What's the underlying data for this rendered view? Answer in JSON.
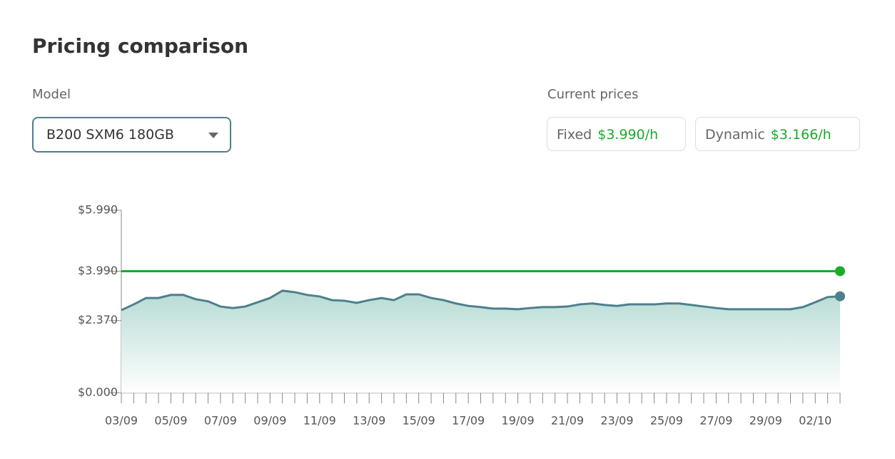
{
  "header": {
    "title": "Pricing comparison"
  },
  "model": {
    "label": "Model",
    "selected": "B200 SXM6 180GB"
  },
  "prices": {
    "label": "Current prices"
  },
  "chart_data": {
    "type": "line",
    "categories": [
      "03/09",
      null,
      null,
      null,
      "05/09",
      null,
      null,
      null,
      "07/09",
      null,
      null,
      null,
      "09/09",
      null,
      null,
      null,
      "11/09",
      null,
      null,
      null,
      "13/09",
      null,
      null,
      null,
      "15/09",
      null,
      null,
      null,
      "17/09",
      null,
      null,
      null,
      "19/09",
      null,
      null,
      null,
      "21/09",
      null,
      null,
      null,
      "23/09",
      null,
      null,
      null,
      "25/09",
      null,
      null,
      null,
      "27/09",
      null,
      null,
      null,
      "29/09",
      null,
      null,
      null,
      "02/10",
      null,
      null
    ],
    "series": [
      {
        "name": "Fixed",
        "current_label": "$3.990/h",
        "color": "#1aab2a",
        "values": [
          3.99,
          3.99,
          3.99,
          3.99,
          3.99,
          3.99,
          3.99,
          3.99,
          3.99,
          3.99,
          3.99,
          3.99,
          3.99,
          3.99,
          3.99,
          3.99,
          3.99,
          3.99,
          3.99,
          3.99,
          3.99,
          3.99,
          3.99,
          3.99,
          3.99,
          3.99,
          3.99,
          3.99,
          3.99,
          3.99,
          3.99,
          3.99,
          3.99,
          3.99,
          3.99,
          3.99,
          3.99,
          3.99,
          3.99,
          3.99,
          3.99,
          3.99,
          3.99,
          3.99,
          3.99,
          3.99,
          3.99,
          3.99,
          3.99,
          3.99,
          3.99,
          3.99,
          3.99,
          3.99,
          3.99,
          3.99,
          3.99,
          3.99,
          3.99
        ]
      },
      {
        "name": "Dynamic",
        "current_label": "$3.166/h",
        "color": "#4d7f8c",
        "area": true,
        "values": [
          2.71,
          2.9,
          3.11,
          3.11,
          3.21,
          3.21,
          3.07,
          3.0,
          2.83,
          2.78,
          2.83,
          2.97,
          3.11,
          3.35,
          3.3,
          3.21,
          3.16,
          3.04,
          3.02,
          2.95,
          3.04,
          3.11,
          3.04,
          3.23,
          3.23,
          3.11,
          3.04,
          2.93,
          2.85,
          2.81,
          2.76,
          2.76,
          2.74,
          2.78,
          2.81,
          2.81,
          2.83,
          2.9,
          2.93,
          2.88,
          2.85,
          2.9,
          2.9,
          2.9,
          2.93,
          2.93,
          2.88,
          2.83,
          2.78,
          2.74,
          2.74,
          2.74,
          2.74,
          2.74,
          2.74,
          2.81,
          2.97,
          3.14,
          3.166
        ]
      }
    ],
    "ylim": [
      0,
      5.99
    ],
    "yticks": [
      {
        "value": 0,
        "label": "$0.000"
      },
      {
        "value": 2.37,
        "label": "$2.370"
      },
      {
        "value": 3.99,
        "label": "$3.990"
      },
      {
        "value": 5.99,
        "label": "$5.990"
      }
    ]
  }
}
